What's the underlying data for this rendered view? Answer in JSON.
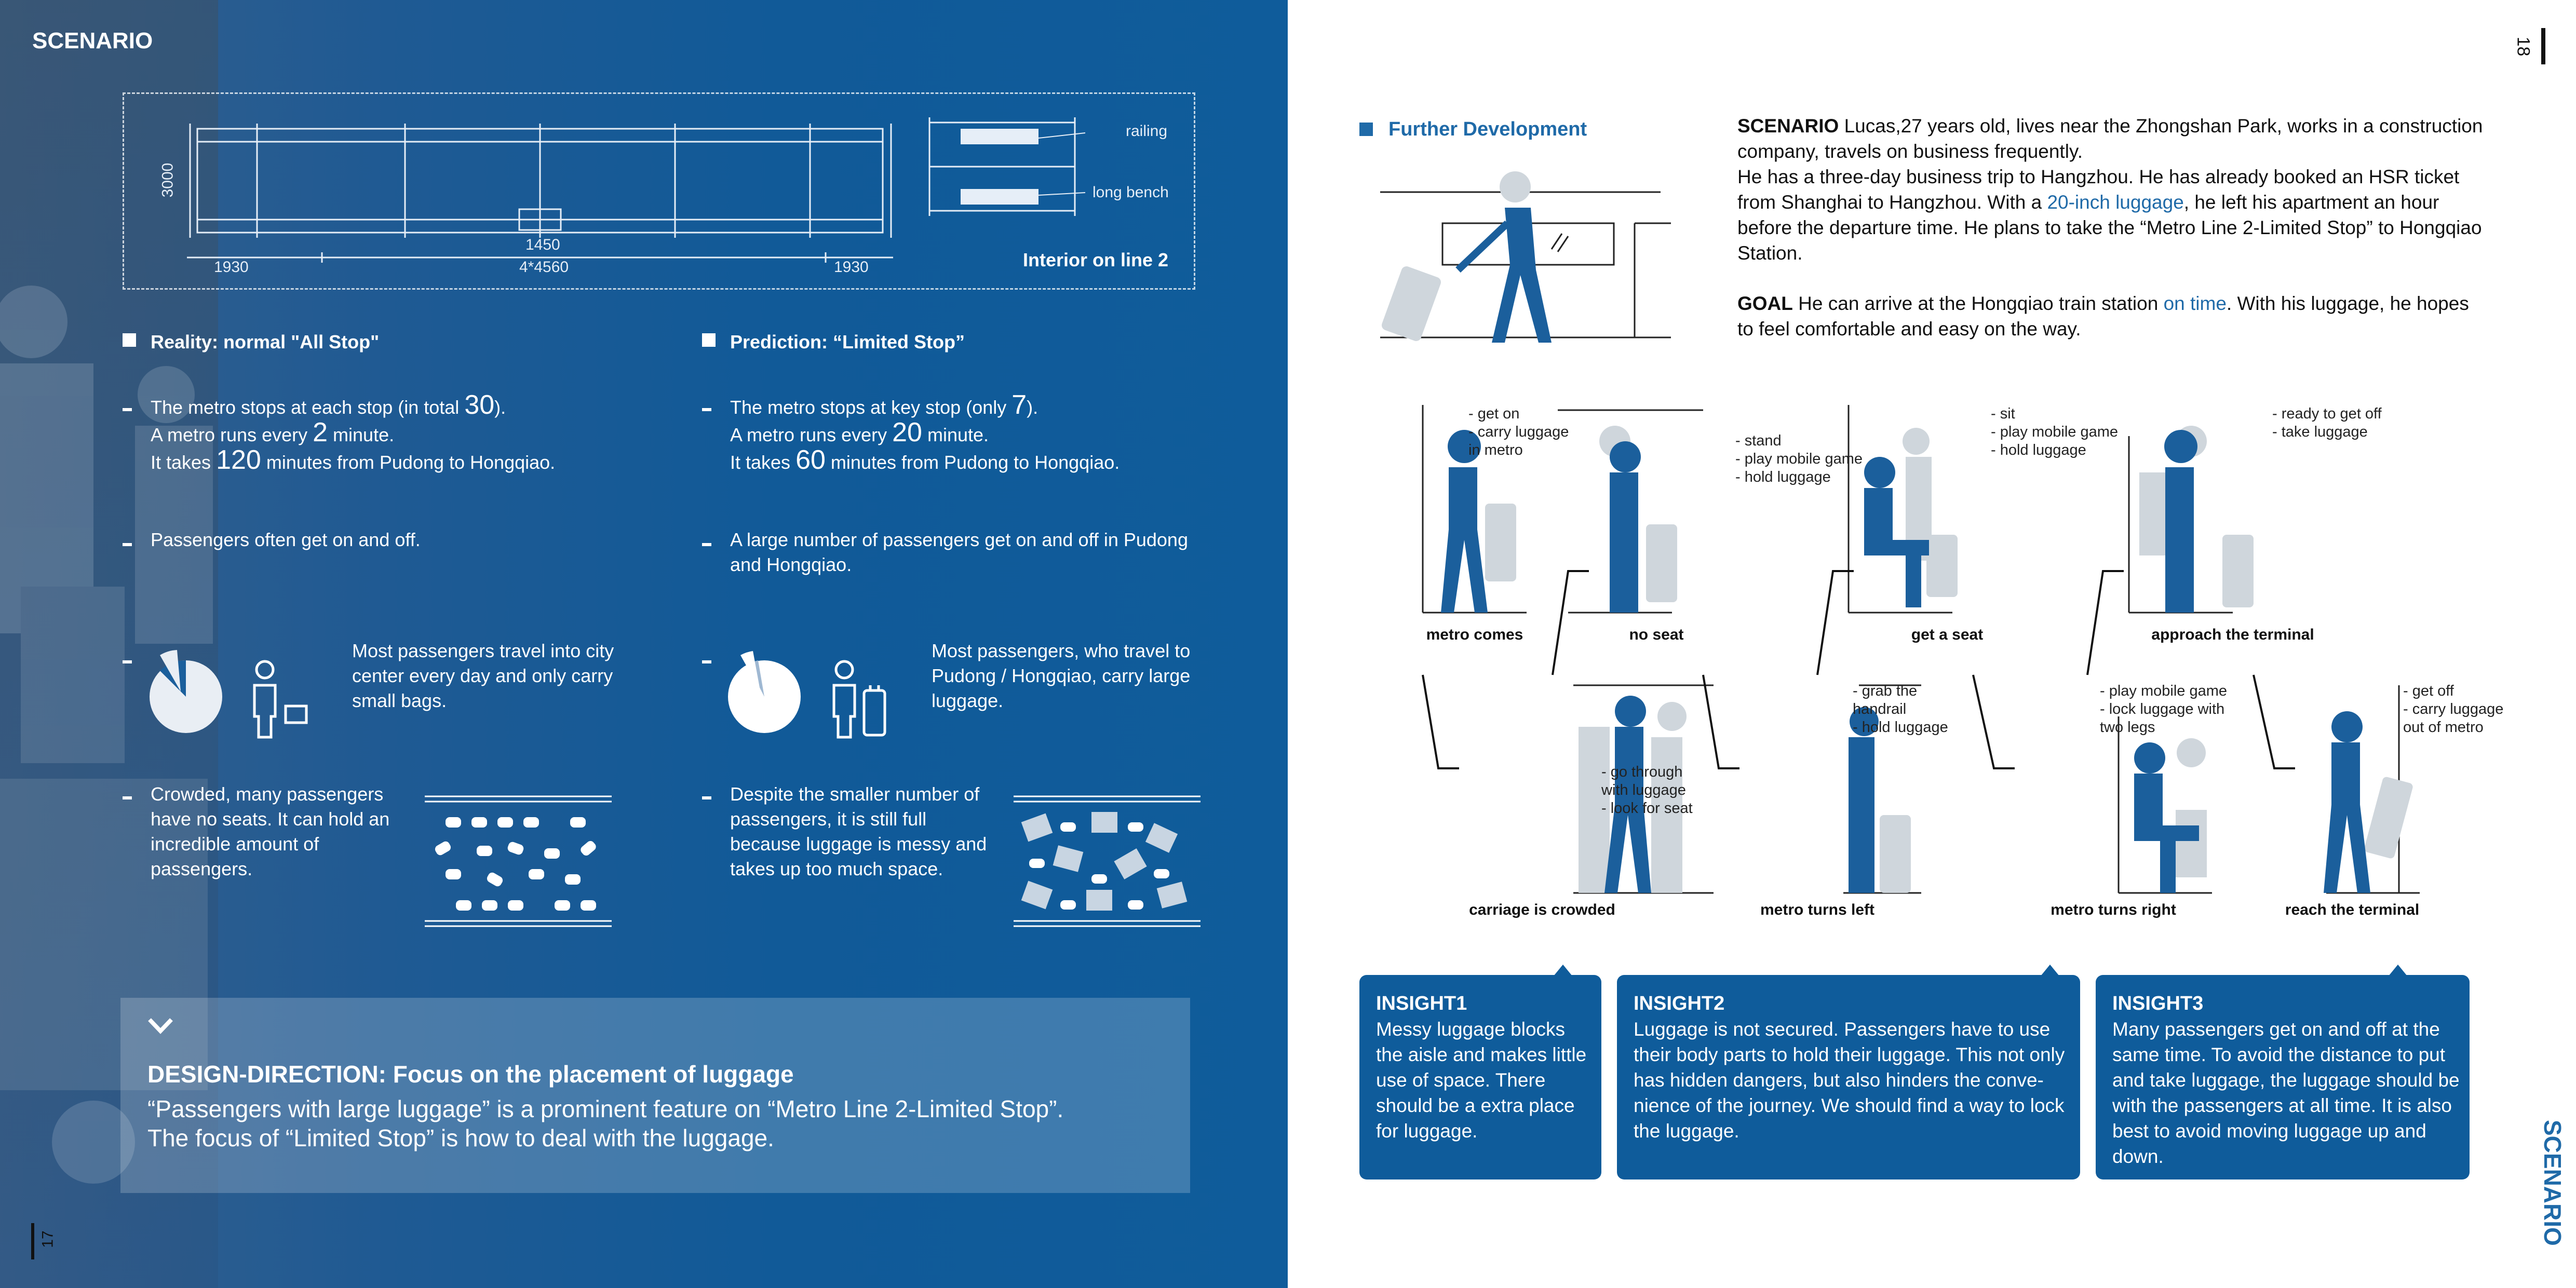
{
  "left": {
    "section_title": "SCENARIO",
    "plan": {
      "dim_height": "3000",
      "dim_left": "1930",
      "dim_door": "1450",
      "dim_middle": "4*4560",
      "dim_right": "1930",
      "label_railing": "railing",
      "label_bench": "long bench",
      "title": "Interior on line 2"
    },
    "reality": {
      "heading": "Reality: normal \"All Stop\"",
      "p1_a": "The metro stops at each stop (in total ",
      "p1_num": "30",
      "p1_b": ").",
      "p1_c": "A metro runs every ",
      "p1_num2": "2",
      "p1_d": " minute.",
      "p1_e": "It takes ",
      "p1_num3": "120",
      "p1_f": " minutes from Pudong to Hongqiao.",
      "p2": "Passengers often get on and off.",
      "p3": "Most passengers travel into city center every day and only carry small bags.",
      "p4": "Crowded, many passengers have no seats. It can hold an incredible amount of passengers."
    },
    "prediction": {
      "heading": "Prediction: “Limited Stop”",
      "p1_a": "The metro stops at key stop (only ",
      "p1_num": "7",
      "p1_b": ").",
      "p1_c": "A metro runs every ",
      "p1_num2": "20",
      "p1_d": " minute.",
      "p1_e": "It takes ",
      "p1_num3": "60",
      "p1_f": " minutes from Pudong to Hongqiao.",
      "p2": "A large number of passengers get on and off in Pudong and Hongqiao.",
      "p3": "Most passengers, who travel to Pudong / Hongqiao, carry large luggage.",
      "p4": "Despite the smaller number of passengers, it is still full because luggage is messy and takes up too much space."
    },
    "design": {
      "title": "DESIGN-DIRECTION: Focus on the placement of luggage",
      "line1": "“Passengers with large luggage” is a prominent feature on “Metro Line 2-Limited Stop”.",
      "line2": "The focus of “Limited Stop” is how to deal with the luggage."
    },
    "page_number": "17"
  },
  "right": {
    "page_number": "18",
    "further_dev": "Further Development",
    "scenario": {
      "label": "SCENARIO",
      "t1": " Lucas,27 years old, lives near the Zhongshan Park, works in a construction company, travels on business frequently.",
      "t2": "He has a three-day business trip to Hangzhou. He has already booked an HSR ticket from Shanghai to Hangzhou. With a ",
      "highlight": "20-inch luggage",
      "t3": ", he left his apartment an hour before the departure time. He plans to take the “Metro Line 2-Limited Stop” to Hongqiao Station."
    },
    "goal": {
      "label": "GOAL",
      "t1": " He can arrive at the Hongqiao train station ",
      "highlight": "on time",
      "t2": ". With his luggage, he hopes to feel comfortable and easy on the way."
    },
    "steps_row1": [
      {
        "caption": "metro comes",
        "notes": "- get on\n- carry luggage\n  in metro"
      },
      {
        "caption": "no seat",
        "notes": "- stand\n- play mobile game\n- hold luggage"
      },
      {
        "caption": "get a seat",
        "notes": "- sit\n- play mobile game\n- hold luggage"
      },
      {
        "caption": "approach the terminal",
        "notes": "- ready to get off\n- take luggage"
      }
    ],
    "steps_row2": [
      {
        "caption": "carriage is crowded",
        "notes": "- go through\n  with luggage\n- look for seat"
      },
      {
        "caption": "metro turns left",
        "notes": "- grab the\n  handrail\n- hold luggage"
      },
      {
        "caption": "metro turns right",
        "notes": "- play mobile game\n- lock luggage with\n  two legs"
      },
      {
        "caption": "reach the terminal",
        "notes": "- get off\n- carry luggage\n  out of metro"
      }
    ],
    "insights": [
      {
        "title": "INSIGHT1",
        "body": "Messy luggage blocks the aisle and makes little use of space. There should be a extra place for luggage."
      },
      {
        "title": "INSIGHT2",
        "body": "Luggage is not secured. Passengers have to use their body parts to hold their luggage. This not only has hidden dangers, but also hinders the conve-nience of the journey. We should find a way to lock the luggage."
      },
      {
        "title": "INSIGHT3",
        "body": "Many passengers get on and off at the same time. To avoid the distance to put and take luggage, the luggage should be with the passengers at all time. It is also best to avoid moving luggage up and down."
      }
    ],
    "side_label": "SCENARIO"
  },
  "colors": {
    "left_bg": "#115a98",
    "accent_blue": "#0f5c9b",
    "highlight_blue": "#1f6aa8",
    "figure_grey": "#cfd6dc"
  },
  "icons": [
    "photo-background",
    "pie-chart-icon",
    "person-with-bag-icon",
    "person-with-suitcase-icon",
    "chevron-down-icon",
    "arrow-right-icon"
  ]
}
